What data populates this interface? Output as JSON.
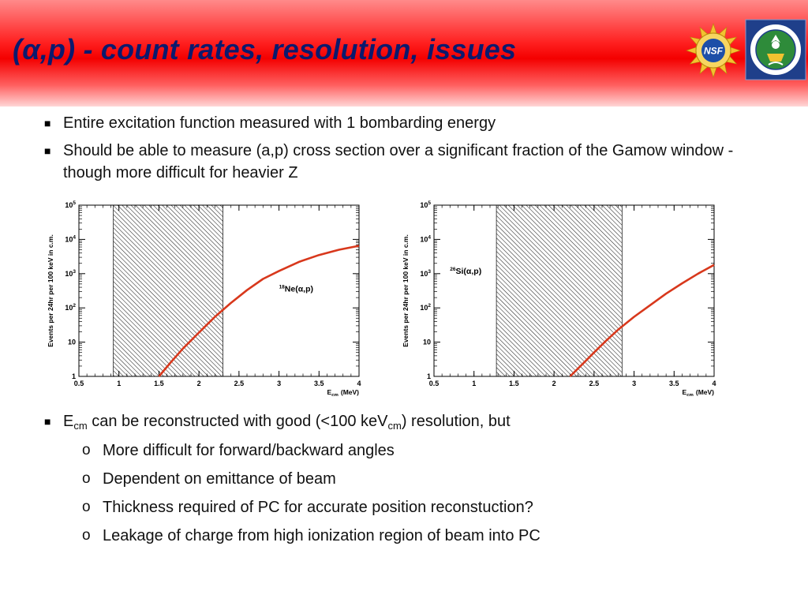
{
  "slide": {
    "title": "(α,p) - count rates, resolution, issues",
    "accent_colors": {
      "header_red": "#f40000",
      "title_navy": "#0b1a6e",
      "curve_red": "#d8381c"
    },
    "logos": [
      {
        "name": "NSF",
        "text": "NSF",
        "icon": "nsf-logo"
      },
      {
        "name": "Department of Energy",
        "icon": "doe-seal"
      }
    ]
  },
  "bullets_top": [
    {
      "marker": "■",
      "text": "Entire excitation function measured with 1 bombarding energy"
    },
    {
      "marker": "■",
      "text": "Should be able to measure (a,p) cross section over a significant fraction of the Gamow window - though more difficult for heavier Z"
    }
  ],
  "bullets_bottom": [
    {
      "marker": "■",
      "pre": "E",
      "sub1": "cm",
      "mid": " can be reconstructed with good (<100 keV",
      "sub2": "cm",
      "post": ") resolution, but"
    }
  ],
  "sub_bullets": [
    {
      "marker": "o",
      "text": "More difficult for forward/backward angles"
    },
    {
      "marker": "o",
      "text": "Dependent on emittance of beam"
    },
    {
      "marker": "o",
      "text": "Thickness required of PC for accurate position reconstuction?"
    },
    {
      "marker": "o",
      "text": "Leakage of charge from high ionization region of beam into PC"
    }
  ],
  "chart_data": [
    {
      "type": "line",
      "ylabel": "Events per 24hr per 100 keV in c.m.",
      "xlabel_main": "E",
      "xlabel_sub": "cm",
      "xlabel_unit": "(MeV)",
      "xlim": [
        0.5,
        4.0
      ],
      "ylim": [
        1,
        100000
      ],
      "yscale": "log",
      "x_ticks": [
        0.5,
        1,
        1.5,
        2,
        2.5,
        3,
        3.5,
        4
      ],
      "x_tick_labels": [
        "0.5",
        "1",
        "1.5",
        "2",
        "2.5",
        "3",
        "3.5",
        "4"
      ],
      "y_ticks": [
        1,
        10,
        100,
        1000,
        10000,
        100000
      ],
      "y_tick_labels": [
        {
          "base": "1",
          "exp": ""
        },
        {
          "base": "10",
          "exp": ""
        },
        {
          "base": "10",
          "exp": "2"
        },
        {
          "base": "10",
          "exp": "3"
        },
        {
          "base": "10",
          "exp": "4"
        },
        {
          "base": "10",
          "exp": "5"
        }
      ],
      "hatched_region": [
        0.93,
        2.3
      ],
      "annotation": {
        "sup": "18",
        "label": "Ne(α,p)",
        "x": 3.0,
        "y": 300
      },
      "series": [
        {
          "color": "#d8381c",
          "points": [
            [
              1.5,
              1
            ],
            [
              1.65,
              2.6
            ],
            [
              1.8,
              6.5
            ],
            [
              2.0,
              19
            ],
            [
              2.2,
              55
            ],
            [
              2.4,
              140
            ],
            [
              2.6,
              330
            ],
            [
              2.8,
              700
            ],
            [
              3.0,
              1200
            ],
            [
              3.25,
              2200
            ],
            [
              3.5,
              3500
            ],
            [
              3.75,
              5000
            ],
            [
              4.0,
              6500
            ]
          ]
        }
      ]
    },
    {
      "type": "line",
      "ylabel": "Events per 24hr per 100 keV in c.m.",
      "xlabel_main": "E",
      "xlabel_sub": "cm",
      "xlabel_unit": "(MeV)",
      "xlim": [
        0.5,
        4.0
      ],
      "ylim": [
        1,
        100000
      ],
      "yscale": "log",
      "x_ticks": [
        0.5,
        1,
        1.5,
        2,
        2.5,
        3,
        3.5,
        4
      ],
      "x_tick_labels": [
        "0.5",
        "1",
        "1.5",
        "2",
        "2.5",
        "3",
        "3.5",
        "4"
      ],
      "y_ticks": [
        1,
        10,
        100,
        1000,
        10000,
        100000
      ],
      "y_tick_labels": [
        {
          "base": "1",
          "exp": ""
        },
        {
          "base": "10",
          "exp": ""
        },
        {
          "base": "10",
          "exp": "2"
        },
        {
          "base": "10",
          "exp": "3"
        },
        {
          "base": "10",
          "exp": "4"
        },
        {
          "base": "10",
          "exp": "5"
        }
      ],
      "hatched_region": [
        1.28,
        2.85
      ],
      "annotation": {
        "sup": "26",
        "label": "Si(α,p)",
        "x": 0.7,
        "y": 1000
      },
      "series": [
        {
          "color": "#d8381c",
          "points": [
            [
              2.2,
              1
            ],
            [
              2.35,
              2.2
            ],
            [
              2.5,
              5
            ],
            [
              2.65,
              11
            ],
            [
              2.8,
              23
            ],
            [
              3.0,
              55
            ],
            [
              3.2,
              120
            ],
            [
              3.4,
              260
            ],
            [
              3.6,
              520
            ],
            [
              3.8,
              1000
            ],
            [
              4.0,
              1800
            ]
          ]
        }
      ]
    }
  ]
}
